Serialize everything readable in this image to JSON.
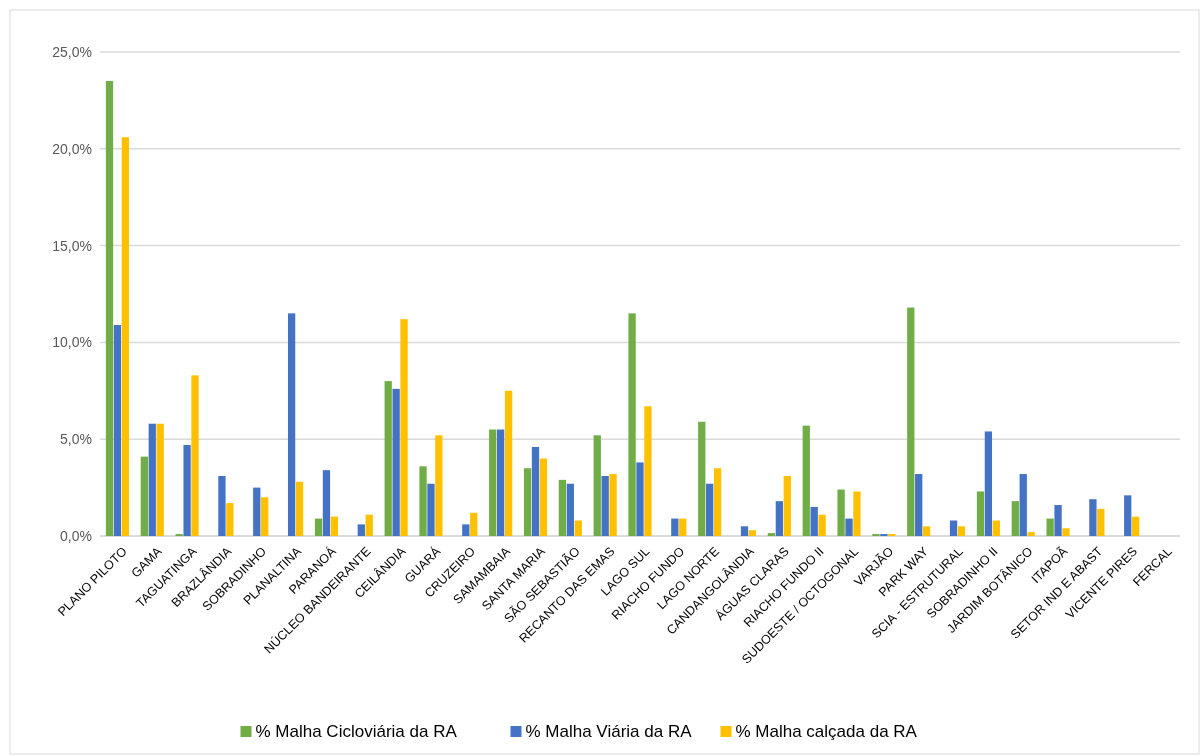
{
  "chart_data": {
    "type": "bar",
    "categories": [
      "PLANO PILOTO",
      "GAMA",
      "TAGUATINGA",
      "BRAZLÂNDIA",
      "SOBRADINHO",
      "PLANALTINA",
      "PARANOÁ",
      "NÚCLEO BANDEIRANTE",
      "CEILÂNDIA",
      "GUARÁ",
      "CRUZEIRO",
      "SAMAMBAIA",
      "SANTA MARIA",
      "SÃO SEBASTIÃO",
      "RECANTO DAS EMAS",
      "LAGO SUL",
      "RIACHO FUNDO",
      "LAGO NORTE",
      "CANDANGOLÂNDIA",
      "ÁGUAS CLARAS",
      "RIACHO FUNDO II",
      "SUDOESTE / OCTOGONAL",
      "VARJÃO",
      "PARK WAY",
      "SCIA - ESTRUTURAL",
      "SOBRADINHO II",
      "JARDIM BOTÂNICO",
      "ITAPOÃ",
      "SETOR IND E ABAST",
      "VICENTE PIRES",
      "FERCAL"
    ],
    "series": [
      {
        "name": "% Malha Cicloviária da RA",
        "color": "#70ad47",
        "values": [
          23.5,
          4.1,
          0.1,
          0,
          0,
          0,
          0.9,
          0,
          8.0,
          3.6,
          0,
          5.5,
          3.5,
          2.9,
          5.2,
          11.5,
          0,
          5.9,
          0,
          0.15,
          5.7,
          2.4,
          0.1,
          11.8,
          0,
          2.3,
          1.8,
          0.9,
          0,
          0,
          0
        ]
      },
      {
        "name": "% Malha Viária da RA",
        "color": "#4472c4",
        "values": [
          10.9,
          5.8,
          4.7,
          3.1,
          2.5,
          11.5,
          3.4,
          0.6,
          7.6,
          2.7,
          0.6,
          5.5,
          4.6,
          2.7,
          3.1,
          3.8,
          0.9,
          2.7,
          0.5,
          1.8,
          1.5,
          0.9,
          0.1,
          3.2,
          0.8,
          5.4,
          3.2,
          1.6,
          1.9,
          2.1,
          0
        ]
      },
      {
        "name": "% Malha calçada da RA",
        "color": "#ffc000",
        "values": [
          20.6,
          5.8,
          8.3,
          1.7,
          2.0,
          2.8,
          1.0,
          1.1,
          11.2,
          5.2,
          1.2,
          7.5,
          4.0,
          0.8,
          3.2,
          6.7,
          0.9,
          3.5,
          0.3,
          3.1,
          1.1,
          2.3,
          0.1,
          0.5,
          0.5,
          0.8,
          0.2,
          0.4,
          1.4,
          1.0,
          0
        ]
      }
    ],
    "ylim": [
      0,
      25
    ],
    "yticks": [
      {
        "value": 0,
        "label": "0,0%"
      },
      {
        "value": 5,
        "label": "5,0%"
      },
      {
        "value": 10,
        "label": "10,0%"
      },
      {
        "value": 15,
        "label": "15,0%"
      },
      {
        "value": 20,
        "label": "20,0%"
      },
      {
        "value": 25,
        "label": "25,0%"
      }
    ],
    "grid": "y",
    "legend": "bottom"
  }
}
